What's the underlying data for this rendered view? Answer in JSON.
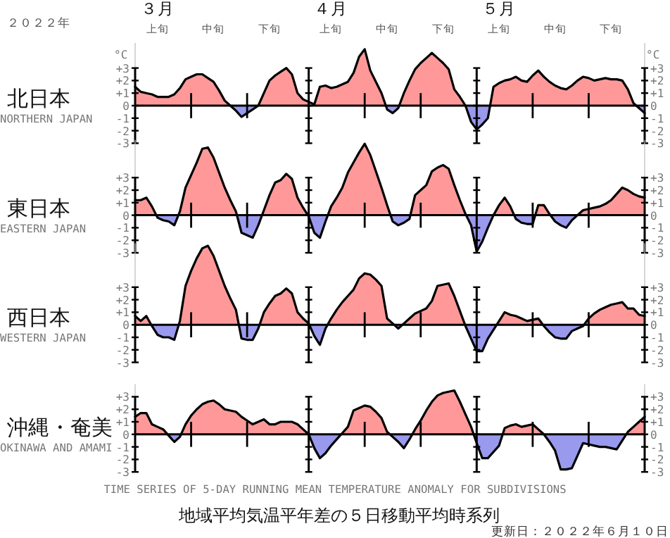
{
  "chart_data": [
    {
      "type": "area",
      "title": "北日本",
      "subtitle": "NORTHERN JAPAN",
      "ylabel": "°C",
      "y2label": "°C",
      "annotations": [
        "２０２２年",
        "３月",
        "４月",
        "５月"
      ],
      "colors": [
        "#ff9999",
        "#9999ee"
      ],
      "categories": [
        null,
        null,
        null,
        null,
        "上旬",
        null,
        null,
        null,
        null,
        null,
        null,
        null,
        null,
        null,
        "中旬",
        null,
        null,
        null,
        null,
        null,
        null,
        null,
        null,
        null,
        "下旬",
        null,
        null,
        null,
        null,
        null,
        null,
        null,
        null,
        null,
        null,
        "上旬",
        null,
        null,
        null,
        null,
        null,
        null,
        null,
        null,
        null,
        "中旬",
        null,
        null,
        null,
        null,
        null,
        null,
        null,
        null,
        null,
        "下旬",
        null,
        null,
        null,
        null,
        null,
        null,
        null,
        null,
        null,
        "上旬",
        null,
        null,
        null,
        null,
        null,
        null,
        null,
        null,
        null,
        "中旬",
        null,
        null,
        null,
        null,
        null,
        null,
        null,
        null,
        null,
        "下旬",
        null,
        null,
        null,
        null,
        null,
        null
      ],
      "ylim": [
        -3,
        5
      ],
      "yticks": [
        {
          "value": 3,
          "label": "+3"
        },
        {
          "value": 2,
          "label": "+2"
        },
        {
          "value": 1,
          "label": "+1"
        },
        0,
        -1,
        -2,
        -3
      ],
      "y2lim": [
        -3,
        5
      ],
      "y2ticks": [
        {
          "value": 3,
          "label": "+3"
        },
        {
          "value": 2,
          "label": "+2"
        },
        {
          "value": 1,
          "label": "+1"
        },
        0,
        -1,
        -2,
        -3
      ],
      "series": [
        {
          "color": "#000000",
          "values": [
            1.5,
            1.1,
            1.0,
            0.9,
            0.7,
            0.7,
            0.7,
            0.9,
            1.4,
            2.1,
            2.3,
            2.5,
            2.5,
            2.2,
            1.9,
            1.2,
            0.4,
            0.0,
            -0.4,
            -0.9,
            -0.6,
            -0.3,
            0,
            1.0,
            2.0,
            2.4,
            2.7,
            3.0,
            2.5,
            1.0,
            0.5,
            0.3,
            0.1,
            1.5,
            1.6,
            1.4,
            1.5,
            1.7,
            1.9,
            2.6,
            3.9,
            4.5,
            2.8,
            1.9,
            1.0,
            -0.3,
            -0.6,
            -0.2,
            1.0,
            2.0,
            2.9,
            3.4,
            3.8,
            4.2,
            3.8,
            3.4,
            2.9,
            1.3,
            0.7,
            0,
            -1.3,
            -1.9,
            -1.5,
            -1.0,
            1.5,
            1.8,
            2.0,
            2.1,
            2.3,
            2.0,
            1.9,
            2.4,
            2.8,
            2.3,
            1.9,
            1.6,
            1.4,
            1.3,
            1.6,
            2.0,
            2.3,
            2.2,
            2.0,
            2.1,
            2.2,
            2.1,
            2.1,
            2.0,
            1.3,
            0.2,
            -0.2,
            -0.6
          ]
        }
      ]
    },
    {
      "type": "area",
      "title": "東日本",
      "subtitle": "EASTERN JAPAN",
      "colors": [
        "#ff9999",
        "#9999ee"
      ],
      "tick_labels": "y",
      "categories": [
        null,
        null,
        null,
        null,
        null,
        null,
        null,
        null,
        null,
        null,
        null,
        null,
        null,
        null,
        null,
        null,
        null,
        null,
        null,
        null,
        null,
        null,
        null,
        null,
        null,
        null,
        null,
        null,
        null,
        null,
        null,
        null,
        null,
        null,
        null,
        null,
        null,
        null,
        null,
        null,
        null,
        null,
        null,
        null,
        null,
        null,
        null,
        null,
        null,
        null,
        null,
        null,
        null,
        null,
        null,
        null,
        null,
        null,
        null,
        null,
        null,
        null,
        null,
        null,
        null,
        null,
        null,
        null,
        null,
        null,
        null,
        null,
        null,
        null,
        null,
        null,
        null,
        null,
        null,
        null,
        null,
        null,
        null,
        null,
        null,
        null,
        null,
        null,
        null,
        null,
        null,
        null
      ],
      "ylim": [
        -3,
        6
      ],
      "yticks": [
        {
          "value": 3,
          "label": "+3"
        },
        {
          "value": 2,
          "label": "+2"
        },
        {
          "value": 1,
          "label": "+1"
        },
        0,
        -1,
        -2,
        -3
      ],
      "y2lim": [
        -3,
        6
      ],
      "y2ticks": [
        {
          "value": 3,
          "label": "+3"
        },
        {
          "value": 2,
          "label": "+2"
        },
        {
          "value": 1,
          "label": "+1"
        },
        0,
        -1,
        -2,
        -3
      ],
      "series": [
        {
          "color": "#000000",
          "values": [
            1.2,
            1.2,
            1.4,
            0.7,
            -0.2,
            -0.4,
            -0.5,
            -0.8,
            0.3,
            2.2,
            3.2,
            4.2,
            5.3,
            5.4,
            4.6,
            3.4,
            2.2,
            1.2,
            0.3,
            -1.4,
            -1.6,
            -1.8,
            -0.8,
            0.4,
            1.6,
            2.6,
            2.8,
            3.3,
            2.9,
            1.4,
            0.6,
            -0.1,
            -1.4,
            -1.8,
            -0.5,
            0.7,
            1.4,
            2.2,
            3.4,
            4.2,
            5.0,
            5.7,
            4.8,
            3.5,
            2.2,
            0.8,
            -0.5,
            -0.8,
            -0.6,
            -0.3,
            1.6,
            2.0,
            2.4,
            3.5,
            3.8,
            4.0,
            3.7,
            2.4,
            1.2,
            0.1,
            -0.8,
            -2.9,
            -2.1,
            -1.0,
            0,
            0.8,
            1.4,
            0.7,
            -0.3,
            -0.6,
            -0.7,
            -0.7,
            0.8,
            0.8,
            0.1,
            -0.5,
            -0.8,
            -1.0,
            -0.4,
            0,
            0.4,
            0.5,
            0.6,
            0.7,
            0.9,
            1.2,
            1.7,
            2.2,
            2.0,
            1.7,
            1.5,
            1.4
          ]
        }
      ]
    },
    {
      "type": "area",
      "title": "西日本",
      "subtitle": "WESTERN JAPAN",
      "colors": [
        "#ff9999",
        "#9999ee"
      ],
      "tick_labels": "y",
      "categories": [
        null,
        null,
        null,
        null,
        null,
        null,
        null,
        null,
        null,
        null,
        null,
        null,
        null,
        null,
        null,
        null,
        null,
        null,
        null,
        null,
        null,
        null,
        null,
        null,
        null,
        null,
        null,
        null,
        null,
        null,
        null,
        null,
        null,
        null,
        null,
        null,
        null,
        null,
        null,
        null,
        null,
        null,
        null,
        null,
        null,
        null,
        null,
        null,
        null,
        null,
        null,
        null,
        null,
        null,
        null,
        null,
        null,
        null,
        null,
        null,
        null,
        null,
        null,
        null,
        null,
        null,
        null,
        null,
        null,
        null,
        null,
        null,
        null,
        null,
        null,
        null,
        null,
        null,
        null,
        null,
        null,
        null,
        null,
        null,
        null,
        null,
        null,
        null,
        null,
        null,
        null,
        null
      ],
      "ylim": [
        -3,
        6.5
      ],
      "yticks": [
        {
          "value": 3,
          "label": "+3"
        },
        {
          "value": 2,
          "label": "+2"
        },
        {
          "value": 1,
          "label": "+1"
        },
        0,
        -1,
        -2,
        -3
      ],
      "y2lim": [
        -3,
        6.5
      ],
      "y2ticks": [
        {
          "value": 3,
          "label": "+3"
        },
        {
          "value": 2,
          "label": "+2"
        },
        {
          "value": 1,
          "label": "+1"
        },
        0,
        -1,
        -2,
        -3
      ],
      "series": [
        {
          "color": "#000000",
          "values": [
            0.7,
            0.3,
            0.7,
            -0.1,
            -0.8,
            -1.0,
            -1.0,
            -1.2,
            0.3,
            3.1,
            4.3,
            5.3,
            6.1,
            6.3,
            5.5,
            4.3,
            3.1,
            2.1,
            1.2,
            -1.1,
            -1.2,
            -1.2,
            -0.3,
            1.0,
            1.7,
            2.3,
            2.5,
            2.9,
            2.5,
            1.0,
            0.5,
            0.1,
            -0.9,
            -1.6,
            -0.3,
            0.5,
            1.2,
            1.8,
            2.3,
            2.8,
            3.7,
            4.1,
            4.0,
            3.6,
            3.1,
            0.5,
            0.1,
            -0.3,
            0.1,
            0.5,
            0.9,
            1.1,
            1.3,
            1.9,
            3.1,
            3.2,
            3.3,
            2.3,
            1.1,
            -0.1,
            -1.1,
            -2.1,
            -2.1,
            -1.1,
            -0.4,
            0.3,
            1.0,
            0.8,
            0.7,
            0.5,
            0.3,
            0.4,
            0.5,
            -0.1,
            -0.6,
            -1.0,
            -1.1,
            -1.1,
            -0.5,
            -0.3,
            -0.1,
            0.5,
            0.9,
            1.2,
            1.4,
            1.6,
            1.7,
            1.8,
            1.3,
            1.3,
            0.8,
            0.7
          ]
        }
      ]
    },
    {
      "type": "area",
      "title": "沖縄・奄美",
      "subtitle": "OKINAWA AND AMAMI",
      "colors": [
        "#ff9999",
        "#9999ee"
      ],
      "tick_labels": "y",
      "annotations": [
        "TIME SERIES OF 5-DAY RUNNING MEAN TEMPERATURE ANOMALY FOR SUBDIVISIONS",
        "地域平均気温平年差の５日移動平均時系列",
        "更新日：２０２２年６月１０日"
      ],
      "categories": [
        null,
        null,
        null,
        null,
        null,
        null,
        null,
        null,
        null,
        null,
        null,
        null,
        null,
        null,
        null,
        null,
        null,
        null,
        null,
        null,
        null,
        null,
        null,
        null,
        null,
        null,
        null,
        null,
        null,
        null,
        null,
        null,
        null,
        null,
        null,
        null,
        null,
        null,
        null,
        null,
        null,
        null,
        null,
        null,
        null,
        null,
        null,
        null,
        null,
        null,
        null,
        null,
        null,
        null,
        null,
        null,
        null,
        null,
        null,
        null,
        null,
        null,
        null,
        null,
        null,
        null,
        null,
        null,
        null,
        null,
        null,
        null,
        null,
        null,
        null,
        null,
        null,
        null,
        null,
        null,
        null,
        null,
        null,
        null,
        null,
        null,
        null,
        null,
        null,
        null,
        null,
        null
      ],
      "ylim": [
        -3,
        4
      ],
      "yticks": [
        {
          "value": 3,
          "label": "+3"
        },
        {
          "value": 2,
          "label": "+2"
        },
        {
          "value": 1,
          "label": "+1"
        },
        0,
        -1,
        -2,
        -3
      ],
      "y2lim": [
        -3,
        4
      ],
      "y2ticks": [
        {
          "value": 3,
          "label": "+3"
        },
        {
          "value": 2,
          "label": "+2"
        },
        {
          "value": 1,
          "label": "+1"
        },
        0,
        -1,
        -2,
        -3
      ],
      "series": [
        {
          "color": "#000000",
          "values": [
            1.4,
            1.7,
            1.7,
            0.8,
            0.6,
            0.4,
            -0.1,
            -0.6,
            -0.2,
            0.8,
            1.5,
            2.0,
            2.4,
            2.6,
            2.7,
            2.4,
            2.0,
            1.9,
            1.8,
            1.4,
            1.1,
            0.8,
            1.0,
            1.2,
            0.8,
            0.8,
            1.0,
            1.0,
            1.0,
            0.8,
            0.4,
            0,
            -1.1,
            -1.9,
            -1.5,
            -0.9,
            -0.4,
            0.1,
            0.6,
            1.9,
            2.1,
            2.3,
            2.2,
            1.8,
            1.3,
            0.2,
            -0.2,
            -0.6,
            -1.1,
            -0.4,
            0.4,
            1.1,
            1.9,
            2.6,
            3.1,
            3.3,
            3.4,
            3.5,
            2.6,
            1.6,
            0.6,
            -0.7,
            -1.9,
            -1.9,
            -1.4,
            -0.9,
            0.5,
            0.7,
            0.8,
            0.6,
            0.7,
            0.8,
            0.4,
            0,
            -0.6,
            -1.3,
            -2.8,
            -2.8,
            -2.7,
            -1.7,
            -0.7,
            -0.8,
            -0.9,
            -1.0,
            -1.0,
            -1.1,
            -1.2,
            -0.5,
            0.2,
            0.6,
            1.0,
            1.4
          ]
        }
      ]
    }
  ]
}
